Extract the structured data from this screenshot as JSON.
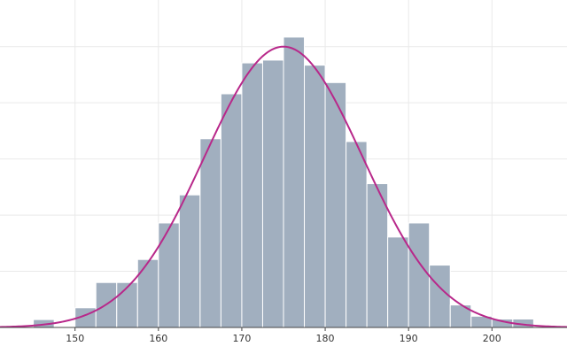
{
  "chart_data": {
    "type": "bar",
    "title": "",
    "xlabel": "",
    "ylabel": "",
    "grid": true,
    "legend": "none",
    "xlim": [
      141,
      209
    ],
    "ylim": [
      0,
      52
    ],
    "x_ticks": [
      150,
      160,
      170,
      180,
      190,
      200
    ],
    "bin_width": 2.5,
    "bins": [
      {
        "x": 146.25,
        "count": 1.4
      },
      {
        "x": 151.25,
        "count": 3.5
      },
      {
        "x": 153.75,
        "count": 8.0
      },
      {
        "x": 156.25,
        "count": 8.0
      },
      {
        "x": 158.75,
        "count": 12.1
      },
      {
        "x": 161.25,
        "count": 18.6
      },
      {
        "x": 163.75,
        "count": 23.6
      },
      {
        "x": 166.25,
        "count": 33.6
      },
      {
        "x": 168.75,
        "count": 41.6
      },
      {
        "x": 171.25,
        "count": 47.1
      },
      {
        "x": 173.75,
        "count": 47.6
      },
      {
        "x": 176.25,
        "count": 51.7
      },
      {
        "x": 178.75,
        "count": 46.7
      },
      {
        "x": 181.25,
        "count": 43.6
      },
      {
        "x": 183.75,
        "count": 33.1
      },
      {
        "x": 186.25,
        "count": 25.6
      },
      {
        "x": 188.75,
        "count": 16.1
      },
      {
        "x": 191.25,
        "count": 18.6
      },
      {
        "x": 193.75,
        "count": 11.1
      },
      {
        "x": 196.25,
        "count": 4.0
      },
      {
        "x": 198.75,
        "count": 2.0
      },
      {
        "x": 201.25,
        "count": 1.5
      },
      {
        "x": 203.75,
        "count": 1.5
      }
    ],
    "fit_curve": {
      "type": "normal",
      "mean": 175,
      "sd": 9.5,
      "peak": 50.0
    },
    "colors": {
      "bar": "#a1afbf",
      "bar_edge": "#ffffff",
      "curve": "#b8288a",
      "grid": "#e9e9e9",
      "axis": "#444444"
    }
  }
}
